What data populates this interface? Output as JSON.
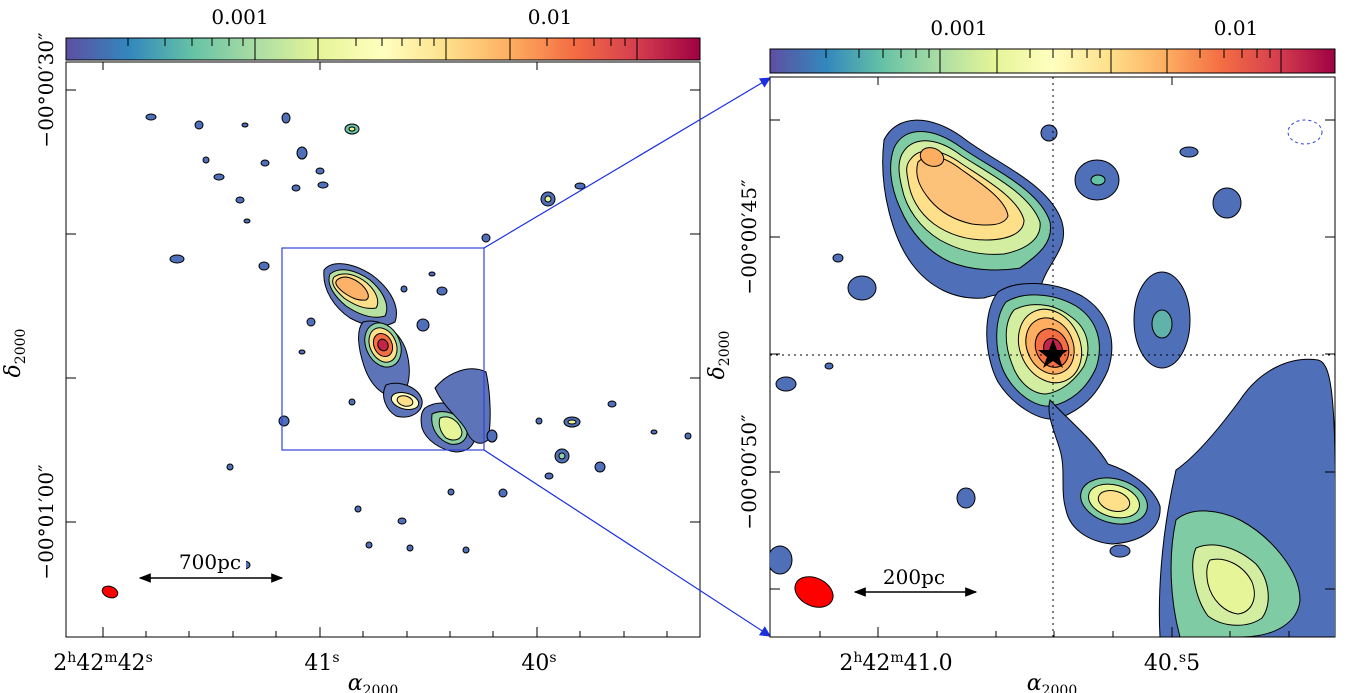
{
  "figure": {
    "left_panel": {
      "colorbar": {
        "tick_labels": [
          "0.001",
          "0.01"
        ]
      },
      "y_ticks": [
        "−00°00′30″",
        "−00°01′00″"
      ],
      "x_ticks": [
        {
          "base": "2",
          "sup1": "h",
          "mid": "42",
          "sup2": "m",
          "end": "42",
          "sup3": "s"
        },
        {
          "base": "41",
          "sup1": "s"
        },
        {
          "base": "40",
          "sup1": "s"
        }
      ],
      "ylabel": {
        "main": "δ",
        "sub": "2000"
      },
      "xlabel": {
        "main": "α",
        "sub": "2000"
      },
      "scale_bar": "700pc"
    },
    "right_panel": {
      "colorbar": {
        "tick_labels": [
          "0.001",
          "0.01"
        ]
      },
      "y_ticks": [
        "−00°00′45″",
        "−00°00′50″"
      ],
      "x_ticks": [
        {
          "base": "2",
          "sup1": "h",
          "mid": "42",
          "sup2": "m",
          "end": "41.0"
        },
        {
          "base": "40.",
          "sup1": "s",
          "end": "5"
        }
      ],
      "ylabel": {
        "main": "δ",
        "sub": "2000"
      },
      "xlabel": {
        "main": "α",
        "sub": "2000"
      },
      "scale_bar": "200pc"
    },
    "colors": {
      "colormap": [
        "#5e4fa2",
        "#3288bd",
        "#66c2a5",
        "#abdda4",
        "#e6f598",
        "#ffffbf",
        "#fee08b",
        "#fdae61",
        "#f46d43",
        "#d53e4f",
        "#9e0142"
      ],
      "beam": "#ff0000",
      "zoom_box": "#3344dd"
    }
  }
}
